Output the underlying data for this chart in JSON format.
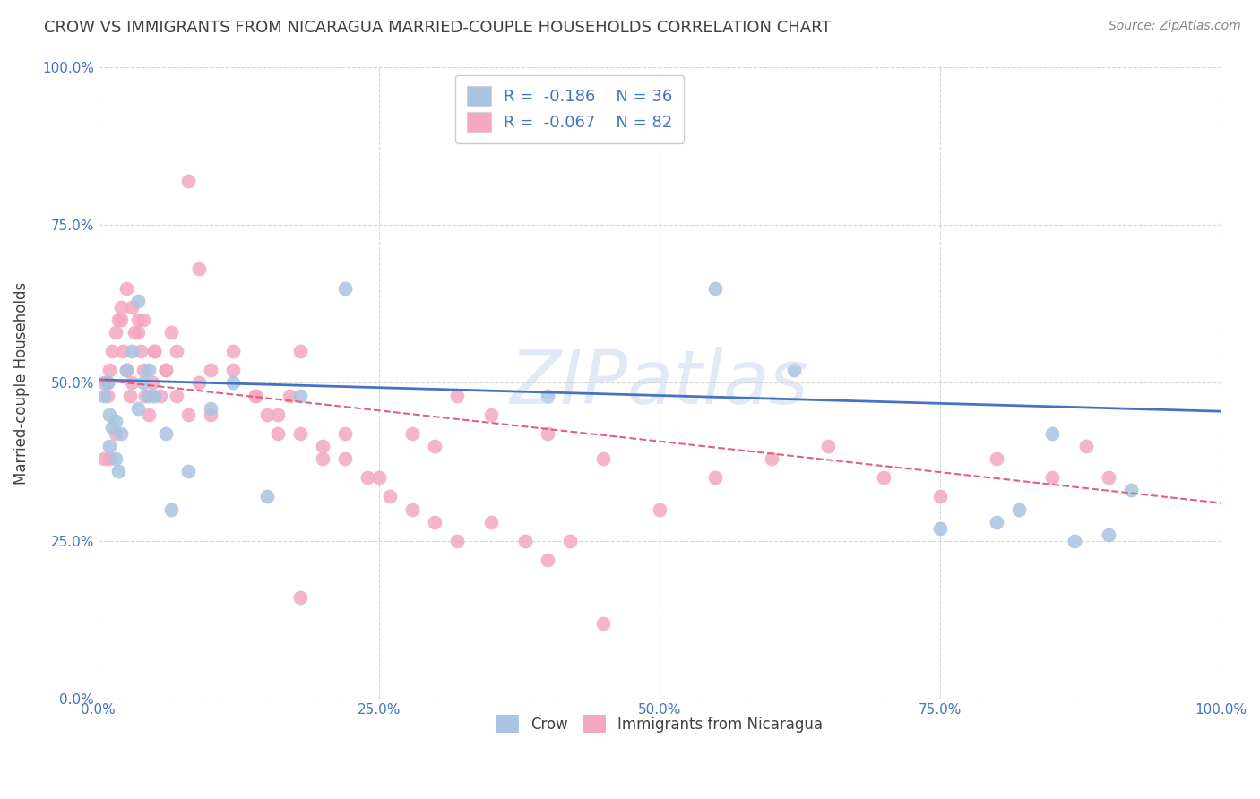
{
  "title": "CROW VS IMMIGRANTS FROM NICARAGUA MARRIED-COUPLE HOUSEHOLDS CORRELATION CHART",
  "source": "Source: ZipAtlas.com",
  "ylabel": "Married-couple Households",
  "legend_r_crow": "R =  -0.186",
  "legend_n_crow": "N = 36",
  "legend_r_nic": "R =  -0.067",
  "legend_n_nic": "N = 82",
  "crow_color": "#a8c4e0",
  "nicaragua_color": "#f4a8c0",
  "trend_blue": "#4472c4",
  "trend_pink": "#e06080",
  "watermark": "ZIPatlas",
  "xlim": [
    0,
    1
  ],
  "ylim": [
    0,
    1
  ],
  "xticks": [
    0,
    0.25,
    0.5,
    0.75,
    1.0
  ],
  "yticks": [
    0,
    0.25,
    0.5,
    0.75,
    1.0
  ],
  "xtick_labels": [
    "0.0%",
    "25.0%",
    "50.0%",
    "75.0%",
    "100.0%"
  ],
  "ytick_labels": [
    "0.0%",
    "25.0%",
    "50.0%",
    "75.0%",
    "100.0%"
  ],
  "crow_x": [
    0.005,
    0.008,
    0.01,
    0.012,
    0.015,
    0.018,
    0.02,
    0.025,
    0.03,
    0.035,
    0.04,
    0.045,
    0.05,
    0.06,
    0.08,
    0.1,
    0.12,
    0.15,
    0.18,
    0.22,
    0.4,
    0.55,
    0.62,
    0.75,
    0.8,
    0.82,
    0.85,
    0.87,
    0.9,
    0.92,
    0.01,
    0.015,
    0.008,
    0.035,
    0.045,
    0.065
  ],
  "crow_y": [
    0.48,
    0.5,
    0.45,
    0.43,
    0.38,
    0.36,
    0.42,
    0.52,
    0.55,
    0.63,
    0.5,
    0.52,
    0.48,
    0.42,
    0.36,
    0.46,
    0.5,
    0.32,
    0.48,
    0.65,
    0.48,
    0.65,
    0.52,
    0.27,
    0.28,
    0.3,
    0.42,
    0.25,
    0.26,
    0.33,
    0.4,
    0.44,
    0.5,
    0.46,
    0.48,
    0.3
  ],
  "nic_x": [
    0.005,
    0.008,
    0.01,
    0.012,
    0.015,
    0.018,
    0.02,
    0.022,
    0.025,
    0.028,
    0.03,
    0.032,
    0.035,
    0.038,
    0.04,
    0.042,
    0.045,
    0.048,
    0.05,
    0.055,
    0.06,
    0.065,
    0.07,
    0.08,
    0.09,
    0.1,
    0.12,
    0.14,
    0.15,
    0.16,
    0.17,
    0.18,
    0.2,
    0.22,
    0.25,
    0.28,
    0.3,
    0.32,
    0.35,
    0.4,
    0.45,
    0.5,
    0.55,
    0.6,
    0.65,
    0.7,
    0.75,
    0.8,
    0.85,
    0.88,
    0.9,
    0.005,
    0.01,
    0.015,
    0.02,
    0.025,
    0.03,
    0.035,
    0.04,
    0.05,
    0.06,
    0.07,
    0.08,
    0.09,
    0.1,
    0.12,
    0.14,
    0.16,
    0.18,
    0.2,
    0.22,
    0.24,
    0.26,
    0.28,
    0.3,
    0.32,
    0.35,
    0.38,
    0.4,
    0.42,
    0.45,
    0.18
  ],
  "nic_y": [
    0.5,
    0.48,
    0.52,
    0.55,
    0.58,
    0.6,
    0.62,
    0.55,
    0.52,
    0.48,
    0.5,
    0.58,
    0.6,
    0.55,
    0.52,
    0.48,
    0.45,
    0.5,
    0.55,
    0.48,
    0.52,
    0.58,
    0.55,
    0.82,
    0.68,
    0.45,
    0.52,
    0.48,
    0.45,
    0.42,
    0.48,
    0.55,
    0.38,
    0.42,
    0.35,
    0.42,
    0.4,
    0.48,
    0.45,
    0.42,
    0.38,
    0.3,
    0.35,
    0.38,
    0.4,
    0.35,
    0.32,
    0.38,
    0.35,
    0.4,
    0.35,
    0.38,
    0.38,
    0.42,
    0.6,
    0.65,
    0.62,
    0.58,
    0.6,
    0.55,
    0.52,
    0.48,
    0.45,
    0.5,
    0.52,
    0.55,
    0.48,
    0.45,
    0.42,
    0.4,
    0.38,
    0.35,
    0.32,
    0.3,
    0.28,
    0.25,
    0.28,
    0.25,
    0.22,
    0.25,
    0.12,
    0.16
  ],
  "crow_trend": [
    0.505,
    0.455
  ],
  "nic_trend": [
    0.505,
    0.31
  ],
  "background_color": "#ffffff",
  "grid_color": "#cccccc",
  "axis_color": "#4472c4",
  "title_color": "#404040",
  "label_color": "#404040"
}
